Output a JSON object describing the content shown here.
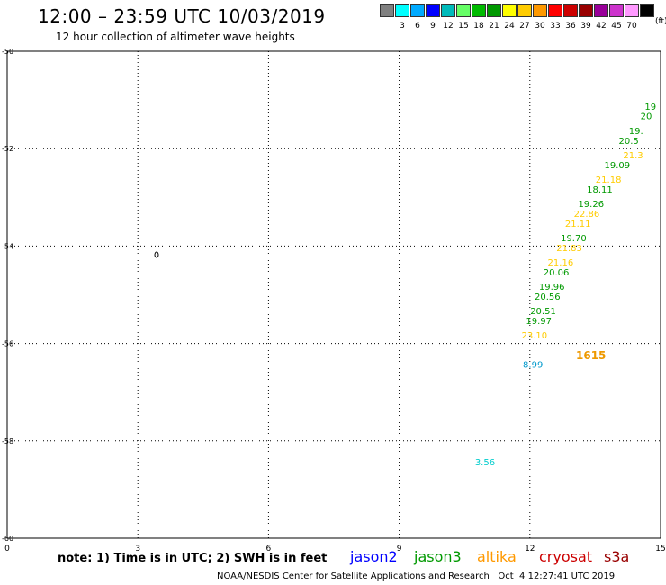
{
  "header": {
    "title": "12:00 – 23:59 UTC 10/03/2019",
    "subtitle": "12 hour collection of altimeter wave heights"
  },
  "legend": {
    "unit": "(ft)",
    "colors": [
      "#808080",
      "#00ffff",
      "#00aaff",
      "#0000ff",
      "#00bbbb",
      "#66ff66",
      "#00bb00",
      "#009900",
      "#ffff00",
      "#ffcc00",
      "#ff9900",
      "#ff0000",
      "#cc0000",
      "#990000",
      "#990099",
      "#cc33cc",
      "#ff99ff",
      "#000000"
    ],
    "labels": [
      "3",
      "6",
      "9",
      "12",
      "15",
      "18",
      "21",
      "24",
      "27",
      "30",
      "33",
      "36",
      "39",
      "42",
      "45",
      "70"
    ]
  },
  "note": "note: 1) Time is in UTC; 2) SWH is in feet",
  "satellites": [
    {
      "name": "jason2",
      "color": "#0000ff"
    },
    {
      "name": "jason3",
      "color": "#009900"
    },
    {
      "name": "altika",
      "color": "#ff9900"
    },
    {
      "name": "cryosat",
      "color": "#cc0000"
    },
    {
      "name": "s3a",
      "color": "#990000"
    }
  ],
  "footer": "NOAA/NESDIS Center for Satellite Applications and Research   Oct  4 12:27:41 UTC 2019",
  "overpass_time": "1615",
  "chart_data": {
    "type": "scatter",
    "xlim": [
      0,
      15
    ],
    "ylim": [
      -60,
      -50
    ],
    "x_ticks": [
      "0",
      "3",
      "6",
      "9",
      "12",
      "15"
    ],
    "y_ticks": [
      "-50",
      "-52",
      "-54",
      "-56",
      "-58",
      "-60"
    ],
    "grid": true,
    "points": [
      {
        "x": 14.9,
        "y": -51.2,
        "label": "19",
        "color": "#009900"
      },
      {
        "x": 14.8,
        "y": -51.4,
        "label": "20",
        "color": "#009900"
      },
      {
        "x": 14.6,
        "y": -51.7,
        "label": "19.",
        "color": "#009900"
      },
      {
        "x": 14.5,
        "y": -51.9,
        "label": "20.5",
        "color": "#009900"
      },
      {
        "x": 14.6,
        "y": -52.2,
        "label": "21.3",
        "color": "#ffcc00"
      },
      {
        "x": 14.3,
        "y": -52.4,
        "label": "19.09",
        "color": "#009900"
      },
      {
        "x": 14.1,
        "y": -52.7,
        "label": "21.18",
        "color": "#ffcc00"
      },
      {
        "x": 13.9,
        "y": -52.9,
        "label": "18.11",
        "color": "#009900"
      },
      {
        "x": 13.7,
        "y": -53.2,
        "label": "19.26",
        "color": "#009900"
      },
      {
        "x": 13.6,
        "y": -53.4,
        "label": "22.86",
        "color": "#ffcc00"
      },
      {
        "x": 13.4,
        "y": -53.6,
        "label": "21.11",
        "color": "#ffcc00"
      },
      {
        "x": 13.3,
        "y": -53.9,
        "label": "19.70",
        "color": "#009900"
      },
      {
        "x": 13.2,
        "y": -54.1,
        "label": "21.83",
        "color": "#ffcc00"
      },
      {
        "x": 13.0,
        "y": -54.4,
        "label": "21.16",
        "color": "#ffcc00"
      },
      {
        "x": 12.9,
        "y": -54.6,
        "label": "20.06",
        "color": "#009900"
      },
      {
        "x": 12.8,
        "y": -54.9,
        "label": "19.96",
        "color": "#009900"
      },
      {
        "x": 12.7,
        "y": -55.1,
        "label": "20.56",
        "color": "#009900"
      },
      {
        "x": 12.6,
        "y": -55.4,
        "label": "20.51",
        "color": "#009900"
      },
      {
        "x": 12.5,
        "y": -55.6,
        "label": "19.97",
        "color": "#009900"
      },
      {
        "x": 12.4,
        "y": -55.9,
        "label": "23.10",
        "color": "#ffcc00"
      },
      {
        "x": 12.3,
        "y": -56.5,
        "label": "8.99",
        "color": "#0099cc"
      },
      {
        "x": 11.2,
        "y": -58.5,
        "label": "3.56",
        "color": "#00cccc"
      }
    ]
  }
}
